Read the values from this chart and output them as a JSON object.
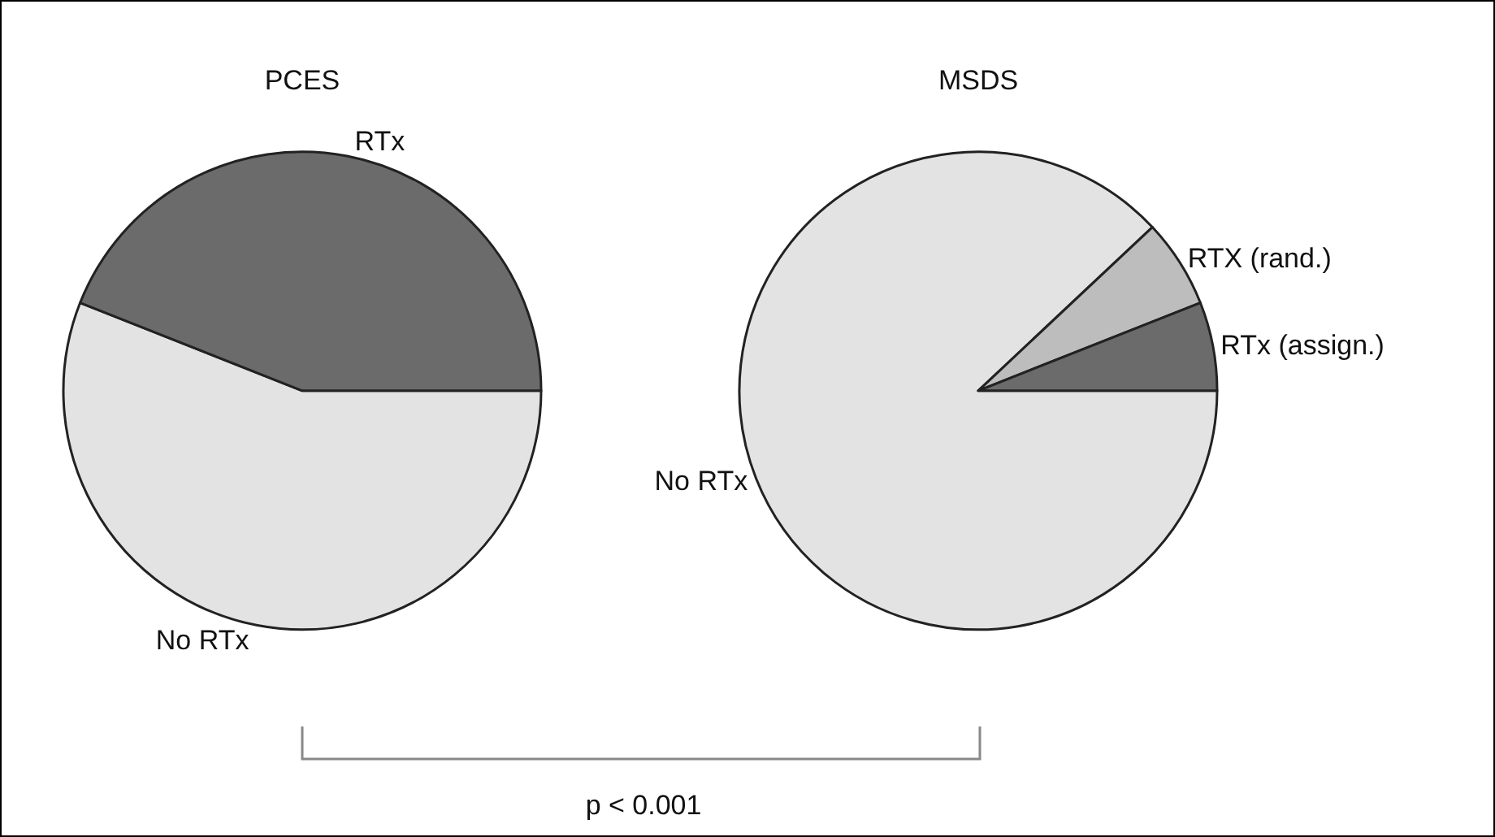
{
  "chart_data": [
    {
      "type": "pie",
      "title": "PCES",
      "categories": [
        "RTx",
        "No RTx"
      ],
      "values": [
        44,
        56
      ],
      "colors": [
        "#6b6b6b",
        "#e3e3e3"
      ],
      "annotations": [
        "p < 0.001"
      ]
    },
    {
      "type": "pie",
      "title": "MSDS",
      "categories": [
        "RTx (assign.)",
        "RTX (rand.)",
        "No RTx"
      ],
      "values": [
        6,
        6,
        88
      ],
      "colors": [
        "#6b6b6b",
        "#bdbdbd",
        "#e3e3e3"
      ]
    }
  ]
}
